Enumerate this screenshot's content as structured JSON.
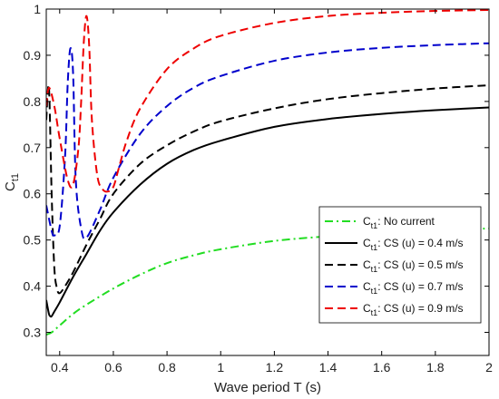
{
  "chart_data": {
    "type": "line",
    "xlabel": "Wave period T (s)",
    "ylabel": {
      "main": "C",
      "sub": "t1"
    },
    "xlim": [
      0.35,
      2.0
    ],
    "ylim": [
      0.25,
      1.0
    ],
    "xticks": [
      "0.4",
      "0.6",
      "0.8",
      "1",
      "1.2",
      "1.4",
      "1.6",
      "1.8",
      "2"
    ],
    "xtick_values": [
      0.4,
      0.6,
      0.8,
      1.0,
      1.2,
      1.4,
      1.6,
      1.8,
      2.0
    ],
    "yticks": [
      "0.3",
      "0.4",
      "0.5",
      "0.6",
      "0.7",
      "0.8",
      "0.9",
      "1"
    ],
    "ytick_values": [
      0.3,
      0.4,
      0.5,
      0.6,
      0.7,
      0.8,
      0.9,
      1.0
    ],
    "grid": false,
    "legend_position": "bottom-right",
    "series": [
      {
        "legend": {
          "main": "C",
          "sub": "t1",
          "text": ": No current"
        },
        "color": "#22dd22",
        "dash": "dash-dot",
        "x": [
          0.35,
          0.37,
          0.4,
          0.45,
          0.5,
          0.6,
          0.7,
          0.8,
          0.9,
          1.0,
          1.2,
          1.4,
          1.6,
          1.8,
          2.0
        ],
        "y": [
          0.295,
          0.3,
          0.315,
          0.34,
          0.36,
          0.395,
          0.425,
          0.45,
          0.467,
          0.48,
          0.498,
          0.508,
          0.515,
          0.521,
          0.525
        ]
      },
      {
        "legend": {
          "main": "C",
          "sub": "t1",
          "text": ": CS (u) = 0.4 m/s"
        },
        "color": "#000000",
        "dash": "solid",
        "x": [
          0.35,
          0.36,
          0.365,
          0.37,
          0.38,
          0.4,
          0.45,
          0.5,
          0.55,
          0.6,
          0.7,
          0.8,
          0.9,
          1.0,
          1.2,
          1.4,
          1.6,
          1.8,
          2.0
        ],
        "y": [
          0.37,
          0.34,
          0.335,
          0.335,
          0.345,
          0.365,
          0.42,
          0.47,
          0.52,
          0.56,
          0.62,
          0.665,
          0.695,
          0.715,
          0.745,
          0.762,
          0.773,
          0.781,
          0.787
        ]
      },
      {
        "legend": {
          "main": "C",
          "sub": "t1",
          "text": ": CS (u) = 0.5 m/s"
        },
        "color": "#000000",
        "dash": "dash",
        "x": [
          0.35,
          0.36,
          0.37,
          0.38,
          0.39,
          0.4,
          0.42,
          0.45,
          0.5,
          0.55,
          0.6,
          0.7,
          0.8,
          0.9,
          1.0,
          1.2,
          1.4,
          1.6,
          1.8,
          2.0
        ],
        "y": [
          0.76,
          0.83,
          0.6,
          0.44,
          0.395,
          0.385,
          0.4,
          0.43,
          0.49,
          0.545,
          0.6,
          0.665,
          0.705,
          0.735,
          0.757,
          0.785,
          0.805,
          0.818,
          0.828,
          0.835
        ]
      },
      {
        "legend": {
          "main": "C",
          "sub": "t1",
          "text": ": CS (u) = 0.7 m/s"
        },
        "color": "#0000cc",
        "dash": "dash",
        "x": [
          0.35,
          0.37,
          0.38,
          0.4,
          0.42,
          0.43,
          0.44,
          0.45,
          0.46,
          0.48,
          0.5,
          0.55,
          0.6,
          0.7,
          0.8,
          0.9,
          1.0,
          1.2,
          1.4,
          1.6,
          1.8,
          2.0
        ],
        "y": [
          0.575,
          0.52,
          0.51,
          0.53,
          0.68,
          0.84,
          0.915,
          0.86,
          0.63,
          0.525,
          0.505,
          0.565,
          0.635,
          0.73,
          0.79,
          0.83,
          0.855,
          0.888,
          0.906,
          0.916,
          0.922,
          0.926
        ]
      },
      {
        "legend": {
          "main": "C",
          "sub": "t1",
          "text": ": CS (u) = 0.9 m/s"
        },
        "color": "#ee0000",
        "dash": "dash",
        "x": [
          0.35,
          0.36,
          0.38,
          0.4,
          0.43,
          0.45,
          0.47,
          0.48,
          0.49,
          0.5,
          0.51,
          0.52,
          0.54,
          0.56,
          0.58,
          0.6,
          0.62,
          0.65,
          0.7,
          0.8,
          0.9,
          1.0,
          1.2,
          1.4,
          1.6,
          1.8,
          2.0
        ],
        "y": [
          0.79,
          0.83,
          0.79,
          0.72,
          0.63,
          0.62,
          0.7,
          0.8,
          0.93,
          0.985,
          0.92,
          0.76,
          0.64,
          0.61,
          0.605,
          0.615,
          0.655,
          0.715,
          0.785,
          0.87,
          0.915,
          0.942,
          0.97,
          0.985,
          0.992,
          0.996,
          0.998
        ]
      }
    ]
  }
}
